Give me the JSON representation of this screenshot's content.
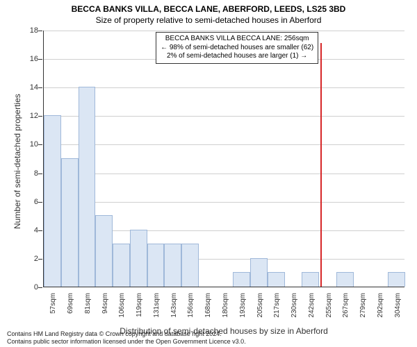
{
  "title": "BECCA BANKS VILLA, BECCA LANE, ABERFORD, LEEDS, LS25 3BD",
  "subtitle": "Size of property relative to semi-detached houses in Aberford",
  "ylabel": "Number of semi-detached properties",
  "xlabel": "Distribution of semi-detached houses by size in Aberford",
  "attribution_line1": "Contains HM Land Registry data © Crown copyright and database right 2024.",
  "attribution_line2": "Contains public sector information licensed under the Open Government Licence v3.0.",
  "chart": {
    "type": "histogram",
    "y_axis": {
      "min": 0,
      "max": 18,
      "tick_step": 2
    },
    "x_axis": {
      "categories": [
        "57sqm",
        "69sqm",
        "81sqm",
        "94sqm",
        "106sqm",
        "119sqm",
        "131sqm",
        "143sqm",
        "156sqm",
        "168sqm",
        "180sqm",
        "193sqm",
        "205sqm",
        "217sqm",
        "230sqm",
        "242sqm",
        "255sqm",
        "267sqm",
        "279sqm",
        "292sqm",
        "304sqm"
      ],
      "label_fontsize": 10,
      "label_rotation": -90
    },
    "bars": {
      "values": [
        12,
        9,
        14,
        5,
        3,
        4,
        3,
        3,
        3,
        0,
        0,
        1,
        2,
        1,
        0,
        1,
        0,
        1,
        0,
        0,
        1
      ],
      "fill_color": "#dbe6f4",
      "border_color": "#9fb8d9",
      "border_width": 1
    },
    "grid": {
      "enabled": true,
      "color": "#cfcfcf"
    },
    "axis_color": "#333333",
    "background_color": "#ffffff",
    "marker_line": {
      "x_value": 256,
      "x_category_position": 16.08,
      "color": "#d62728",
      "width": 1.5
    },
    "annotation": {
      "lines": [
        "BECCA BANKS VILLA BECCA LANE: 256sqm",
        "← 98% of semi-detached houses are smaller (62)",
        "2% of semi-detached houses are larger (1) →"
      ],
      "border_color": "#333333",
      "background_color": "#ffffff",
      "fontsize": 10
    },
    "plot_fontsize": {
      "title": 12,
      "subtitle": 12,
      "axis_label": 12,
      "tick": 11
    }
  }
}
